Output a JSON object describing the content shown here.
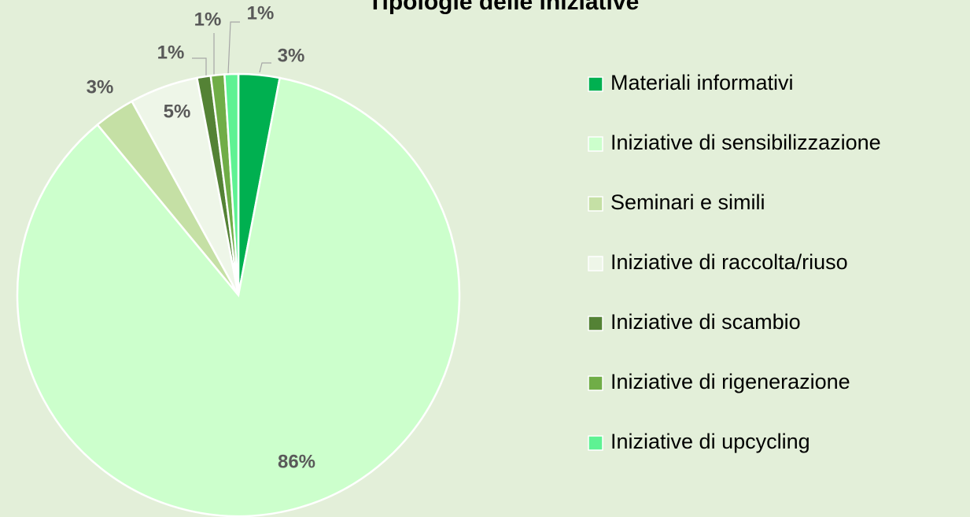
{
  "chart_data": {
    "type": "pie",
    "title": "Tipologie delle iniziative",
    "categories": [
      "Materiali informativi",
      "Iniziative di sensibilizzazione",
      "Seminari e simili",
      "Iniziative di raccolta/riuso",
      "Iniziative di scambio",
      "Iniziative di rigenerazione",
      "Iniziative di upcycling"
    ],
    "values": [
      3,
      86,
      3,
      5,
      1,
      1,
      1
    ],
    "value_labels": [
      "3%",
      "86%",
      "3%",
      "5%",
      "1%",
      "1%",
      "1%"
    ],
    "colors": [
      "#00b050",
      "#ccffcc",
      "#c5e0a5",
      "#eef6e8",
      "#548235",
      "#70ad47",
      "#5ef293"
    ],
    "legend": "right"
  }
}
